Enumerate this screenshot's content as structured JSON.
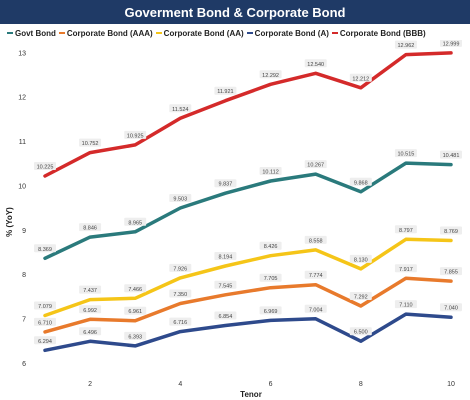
{
  "chart_data": {
    "type": "line",
    "title": "Goverment Bond & Corporate Bond",
    "xlabel": "Tenor",
    "ylabel": "% (YoY)",
    "x": [
      1,
      2,
      3,
      4,
      5,
      6,
      7,
      8,
      9,
      10
    ],
    "x_ticks": [
      2,
      4,
      6,
      8,
      10
    ],
    "y_ticks": [
      6,
      7,
      8,
      9,
      10,
      11,
      12,
      13
    ],
    "xlim": [
      0.8,
      10.2
    ],
    "ylim": [
      5.85,
      13.2
    ],
    "legend_position": "top",
    "series": [
      {
        "name": "Govt Bond",
        "color": "#2a7a7c",
        "values": [
          8.369,
          8.846,
          8.965,
          9.503,
          9.837,
          10.112,
          10.267,
          9.868,
          10.515,
          10.481
        ],
        "labels": [
          "8.369",
          "8.846",
          "8.965",
          "9.503",
          "9.837",
          "10.112",
          "10.267",
          "9.868",
          "10.515",
          "10.481"
        ]
      },
      {
        "name": "Corporate Bond (AAA)",
        "color": "#e87a2c",
        "values": [
          6.71,
          6.992,
          6.961,
          7.35,
          7.545,
          7.705,
          7.774,
          7.292,
          7.917,
          7.855
        ],
        "labels": [
          "6.710",
          "6.992",
          "6.961",
          "7.350",
          "7.545",
          "7.705",
          "7.774",
          "7.292",
          "7.917",
          "7.855"
        ]
      },
      {
        "name": "Corporate Bond (AA)",
        "color": "#f5c518",
        "values": [
          7.079,
          7.437,
          7.466,
          7.926,
          8.194,
          8.426,
          8.558,
          8.13,
          8.797,
          8.769
        ],
        "labels": [
          "7.079",
          "7.437",
          "7.466",
          "7.926",
          "8.194",
          "8.426",
          "8.558",
          "8.130",
          "8.797",
          "8.769"
        ]
      },
      {
        "name": "Corporate Bond (A)",
        "color": "#2e4a8c",
        "values": [
          6.294,
          6.496,
          6.393,
          6.716,
          6.854,
          6.969,
          7.004,
          6.5,
          7.11,
          7.04
        ],
        "labels": [
          "6.294",
          "6.496",
          "6.393",
          "6.716",
          "6.854",
          "6.969",
          "7.004",
          "6.500",
          "7.110",
          "7.040"
        ]
      },
      {
        "name": "Corporate Bond (BBB)",
        "color": "#d42a2a",
        "values": [
          10.225,
          10.752,
          10.925,
          11.524,
          11.921,
          12.292,
          12.54,
          12.212,
          12.962,
          12.999
        ],
        "labels": [
          "10.225",
          "10.752",
          "10.925",
          "11.524",
          "11.921",
          "12.292",
          "12.540",
          "12.212",
          "12.962",
          "12.999"
        ]
      }
    ]
  }
}
